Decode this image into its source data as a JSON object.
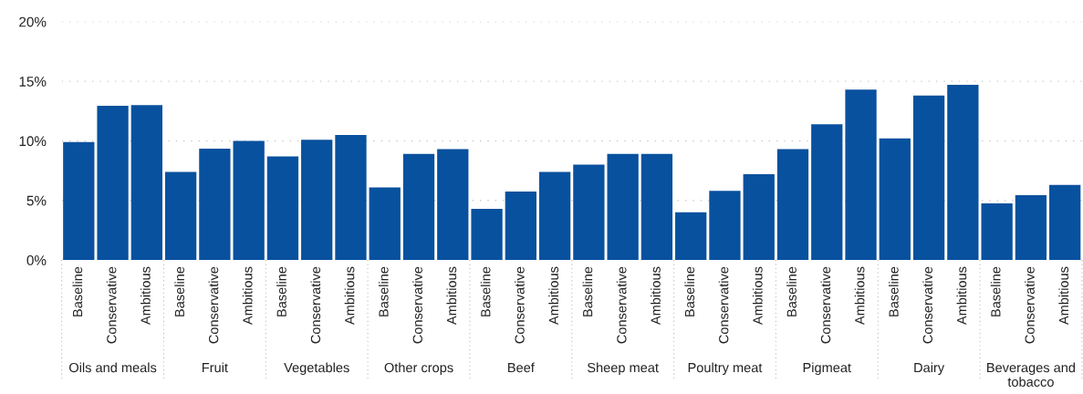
{
  "chart_data": {
    "type": "bar",
    "categories": [
      "Baseline",
      "Conservative",
      "Ambitious",
      "Baseline",
      "Conservative",
      "Ambitious",
      "Baseline",
      "Conservative",
      "Ambitious",
      "Baseline",
      "Conservative",
      "Ambitious",
      "Baseline",
      "Conservative",
      "Ambitious",
      "Baseline",
      "Conservative",
      "Ambitious",
      "Baseline",
      "Conservative",
      "Ambitious",
      "Baseline",
      "Conservative",
      "Ambitious",
      "Baseline",
      "Conservative",
      "Ambitious",
      "Baseline",
      "Conservative",
      "Ambitious"
    ],
    "values": [
      9.9,
      12.95,
      13.0,
      7.4,
      9.35,
      10.0,
      8.7,
      10.1,
      10.5,
      6.1,
      8.9,
      9.3,
      4.3,
      5.75,
      7.4,
      8.0,
      8.9,
      8.9,
      4.0,
      5.8,
      7.2,
      9.3,
      11.4,
      14.3,
      10.2,
      13.8,
      14.7,
      4.75,
      5.45,
      6.3
    ],
    "color": "#08519e",
    "annotations": [
      "Oils and meals",
      "Fruit",
      "Vegetables",
      "Other crops",
      "Beef",
      "Sheep meat",
      "Poultry meat",
      "Pigmeat",
      "Dairy",
      "Beverages and tobacco"
    ],
    "ylim": [
      0,
      20
    ],
    "yticks": [
      {
        "value": 0,
        "label": "0%"
      },
      {
        "value": 5,
        "label": "5%"
      },
      {
        "value": 10,
        "label": "10%"
      },
      {
        "value": 15,
        "label": "15%"
      },
      {
        "value": 20,
        "label": "20%"
      }
    ],
    "grid": "y"
  }
}
